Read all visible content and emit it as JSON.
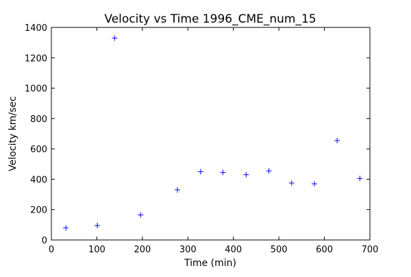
{
  "chart_data": {
    "type": "scatter",
    "title": "Velocity vs Time 1996_CME_num_15",
    "xlabel": "Time (min)",
    "ylabel": "Velocity km/sec",
    "xlim": [
      0,
      700
    ],
    "ylim": [
      0,
      1400
    ],
    "xticks": [
      0,
      100,
      200,
      300,
      400,
      500,
      600,
      700
    ],
    "yticks": [
      0,
      200,
      400,
      600,
      800,
      1000,
      1200,
      1400
    ],
    "grid": false,
    "marker": "+",
    "color": "#0000ff",
    "series": [
      {
        "x": [
          32,
          101,
          139,
          196,
          277,
          328,
          377,
          428,
          478,
          528,
          578,
          628,
          678
        ],
        "y": [
          80,
          95,
          1330,
          165,
          330,
          450,
          445,
          430,
          455,
          375,
          370,
          655,
          405
        ]
      }
    ]
  }
}
